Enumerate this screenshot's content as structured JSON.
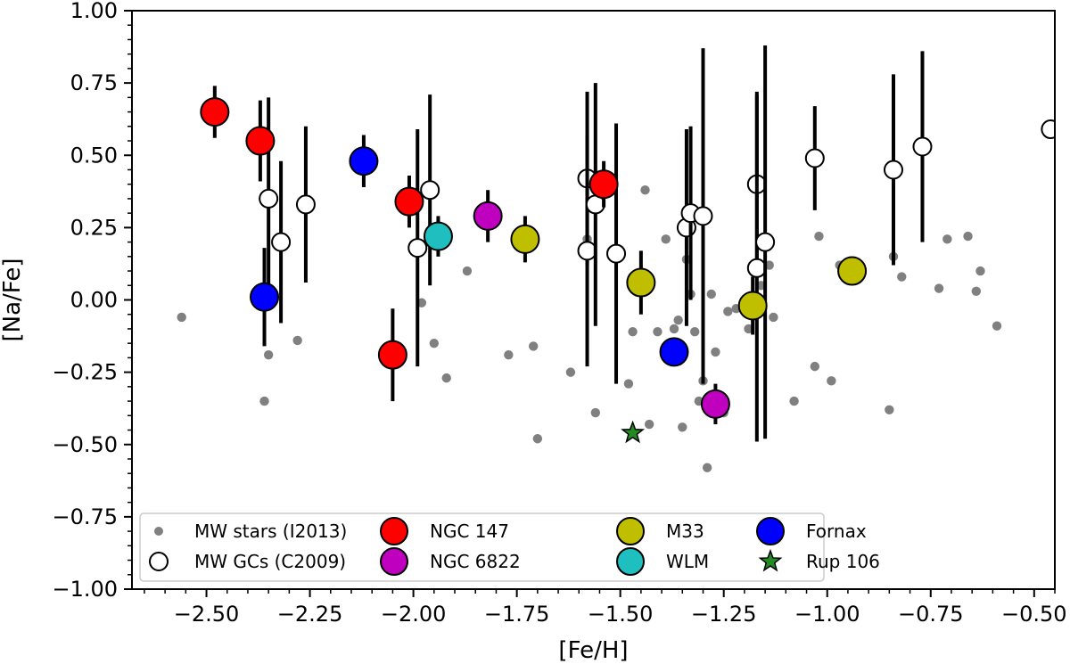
{
  "chart_data": {
    "type": "scatter",
    "xlabel": "[Fe/H]",
    "ylabel": "[Na/Fe]",
    "xlim": [
      -2.68,
      -0.45
    ],
    "ylim": [
      -1.0,
      1.0
    ],
    "xticks": [
      -2.5,
      -2.25,
      -2.0,
      -1.75,
      -1.5,
      -1.25,
      -1.0,
      -0.75,
      -0.5
    ],
    "xtick_labels": [
      "−2.50",
      "−2.25",
      "−2.00",
      "−1.75",
      "−1.50",
      "−1.25",
      "−1.00",
      "−0.75",
      "−0.50"
    ],
    "yticks": [
      1.0,
      0.75,
      0.5,
      0.25,
      0.0,
      -0.25,
      -0.5,
      -0.75,
      -1.0
    ],
    "ytick_labels": [
      "1.00",
      "0.75",
      "0.50",
      "0.25",
      "0.00",
      "−0.25",
      "−0.50",
      "−0.75",
      "−1.00"
    ],
    "grid": false,
    "legend_position": "bottom",
    "series": [
      {
        "name": "MW stars (I2013)",
        "marker": "small-dot",
        "color": "#808080",
        "points": [
          [
            -2.56,
            -0.06
          ],
          [
            -2.28,
            -0.14
          ],
          [
            -2.35,
            -0.19
          ],
          [
            -2.36,
            -0.35
          ],
          [
            -1.98,
            -0.01
          ],
          [
            -1.95,
            -0.15
          ],
          [
            -1.92,
            -0.27
          ],
          [
            -1.87,
            0.1
          ],
          [
            -1.77,
            -0.19
          ],
          [
            -1.71,
            -0.16
          ],
          [
            -1.7,
            -0.48
          ],
          [
            -1.62,
            -0.25
          ],
          [
            -1.58,
            0.21
          ],
          [
            -1.56,
            -0.39
          ],
          [
            -1.48,
            -0.29
          ],
          [
            -1.47,
            -0.11
          ],
          [
            -1.44,
            0.38
          ],
          [
            -1.43,
            -0.43
          ],
          [
            -1.41,
            -0.11
          ],
          [
            -1.39,
            0.21
          ],
          [
            -1.37,
            -0.1
          ],
          [
            -1.36,
            -0.07
          ],
          [
            -1.35,
            -0.44
          ],
          [
            -1.34,
            0.14
          ],
          [
            -1.33,
            0.02
          ],
          [
            -1.32,
            -0.11
          ],
          [
            -1.31,
            -0.35
          ],
          [
            -1.3,
            -0.28
          ],
          [
            -1.29,
            -0.58
          ],
          [
            -1.28,
            0.02
          ],
          [
            -1.27,
            -0.18
          ],
          [
            -1.25,
            -0.39
          ],
          [
            -1.24,
            -0.04
          ],
          [
            -1.22,
            -0.03
          ],
          [
            -1.19,
            -0.1
          ],
          [
            -1.16,
            0.05
          ],
          [
            -1.14,
            0.12
          ],
          [
            -1.13,
            -0.06
          ],
          [
            -1.08,
            -0.35
          ],
          [
            -1.03,
            -0.23
          ],
          [
            -1.02,
            0.22
          ],
          [
            -0.99,
            -0.28
          ],
          [
            -0.97,
            0.12
          ],
          [
            -0.85,
            -0.38
          ],
          [
            -0.84,
            0.15
          ],
          [
            -0.82,
            0.08
          ],
          [
            -0.73,
            0.04
          ],
          [
            -0.71,
            0.21
          ],
          [
            -0.66,
            0.22
          ],
          [
            -0.64,
            0.03
          ],
          [
            -0.63,
            0.1
          ],
          [
            -0.59,
            -0.09
          ]
        ]
      },
      {
        "name": "MW GCs (C2009)",
        "marker": "open-circle",
        "color": "#ffffff",
        "points": [
          [
            -2.35,
            0.35,
            0.35
          ],
          [
            -2.32,
            0.2,
            0.28
          ],
          [
            -2.26,
            0.33,
            0.27
          ],
          [
            -1.99,
            0.18,
            0.41
          ],
          [
            -1.96,
            0.38,
            0.33
          ],
          [
            -1.58,
            0.42,
            0.3
          ],
          [
            -1.58,
            0.17,
            0.4
          ],
          [
            -1.56,
            0.33,
            0.42
          ],
          [
            -1.51,
            0.16,
            0.45
          ],
          [
            -1.34,
            0.25,
            0.34
          ],
          [
            -1.33,
            0.3,
            0.3
          ],
          [
            -1.3,
            0.29,
            0.58
          ],
          [
            -1.17,
            0.4,
            0.32
          ],
          [
            -1.17,
            0.11,
            0.6
          ],
          [
            -1.15,
            0.2,
            0.68
          ],
          [
            -1.03,
            0.49,
            0.18
          ],
          [
            -0.84,
            0.45,
            0.33
          ],
          [
            -0.77,
            0.53,
            0.33
          ],
          [
            -0.46,
            0.59,
            0.0
          ]
        ]
      },
      {
        "name": "NGC 147",
        "marker": "large-circle",
        "color": "#ff0000",
        "points": [
          [
            -2.48,
            0.65,
            0.09
          ],
          [
            -2.37,
            0.55,
            0.14
          ],
          [
            -2.05,
            -0.19,
            0.16
          ],
          [
            -2.01,
            0.34,
            0.09
          ],
          [
            -1.54,
            0.4,
            0.08
          ]
        ]
      },
      {
        "name": "NGC 6822",
        "marker": "large-circle",
        "color": "#bf00bf",
        "points": [
          [
            -1.82,
            0.29,
            0.09
          ],
          [
            -1.27,
            -0.36,
            0.07
          ]
        ]
      },
      {
        "name": "M33",
        "marker": "large-circle",
        "color": "#bfbf00",
        "points": [
          [
            -1.73,
            0.21,
            0.08
          ],
          [
            -1.45,
            0.06,
            0.11
          ],
          [
            -1.18,
            -0.02,
            0.1
          ],
          [
            -0.94,
            0.1,
            0.0
          ]
        ]
      },
      {
        "name": "WLM",
        "marker": "large-circle",
        "color": "#1fbfbf",
        "points": [
          [
            -1.94,
            0.22,
            0.07
          ]
        ]
      },
      {
        "name": "Fornax",
        "marker": "large-circle",
        "color": "#0000ff",
        "points": [
          [
            -2.36,
            0.01,
            0.17
          ],
          [
            -2.12,
            0.48,
            0.09
          ],
          [
            -1.37,
            -0.18,
            0.0
          ]
        ]
      },
      {
        "name": "Rup 106",
        "marker": "star",
        "color": "#228b22",
        "points": [
          [
            -1.47,
            -0.46,
            0.0
          ]
        ]
      }
    ]
  }
}
